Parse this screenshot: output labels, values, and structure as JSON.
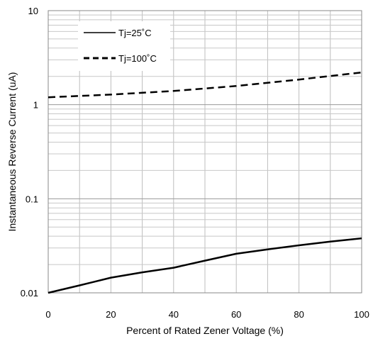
{
  "chart_data": {
    "type": "line",
    "xlabel": "Percent of Rated Zener Voltage (%)",
    "ylabel": "Instantaneous Reverse Current (uA)",
    "xlim": [
      0,
      100
    ],
    "ylim": [
      0.01,
      10
    ],
    "yscale": "log",
    "grid": true,
    "legend_position": "top-left",
    "x_ticks": [
      0,
      20,
      40,
      60,
      80,
      100
    ],
    "x_tick_labels": [
      "0",
      "20",
      "40",
      "60",
      "80",
      "100"
    ],
    "y_ticks": [
      0.01,
      0.1,
      1,
      10
    ],
    "y_tick_labels": [
      "0.01",
      "0.1",
      "1",
      "10"
    ],
    "series": [
      {
        "name": "Tj=25˚C",
        "style": "solid",
        "color": "#000000",
        "x": [
          0,
          10,
          20,
          30,
          40,
          50,
          60,
          70,
          80,
          90,
          100
        ],
        "y": [
          0.01,
          0.012,
          0.0145,
          0.0165,
          0.0185,
          0.022,
          0.026,
          0.029,
          0.032,
          0.035,
          0.038
        ]
      },
      {
        "name": "Tj=100˚C",
        "style": "dashed",
        "color": "#000000",
        "x": [
          0,
          20,
          40,
          60,
          80,
          100
        ],
        "y": [
          1.2,
          1.28,
          1.4,
          1.58,
          1.85,
          2.2
        ]
      }
    ]
  }
}
